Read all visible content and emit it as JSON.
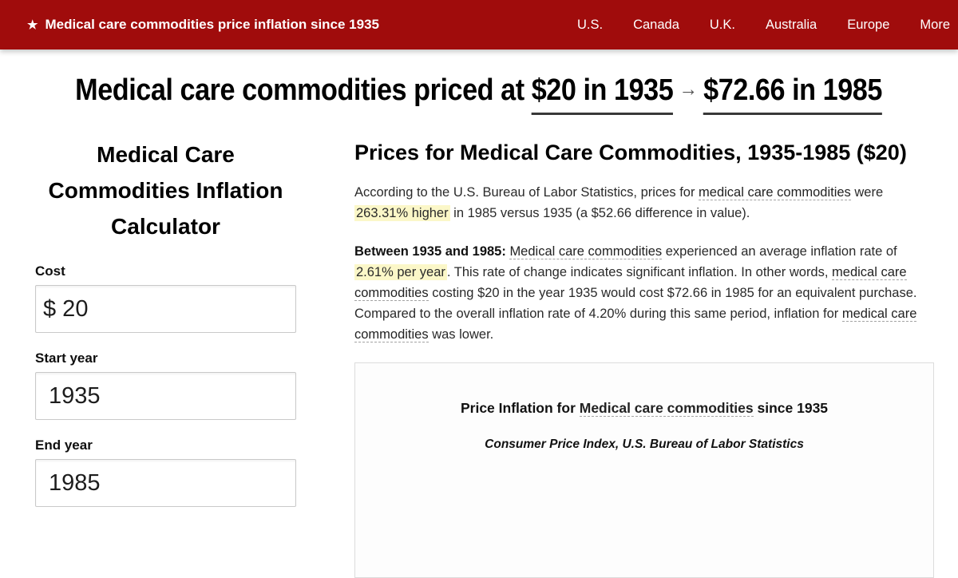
{
  "colors": {
    "accent_red": "#a00c0c",
    "highlight_yellow": "#fbf7c8"
  },
  "header": {
    "star_icon": "★",
    "brand": "Medical care commodities price inflation since 1935",
    "nav_items": [
      "U.S.",
      "Canada",
      "U.K.",
      "Australia",
      "Europe",
      "More"
    ]
  },
  "headline": {
    "prefix": "Medical care commodities priced at ",
    "from": "$20 in 1935",
    "arrow": "→",
    "to": "$72.66 in 1985"
  },
  "calculator": {
    "title": "Medical Care Commodities Inflation Calculator",
    "cost_label": "Cost",
    "cost_value": "$ 20",
    "start_year_label": "Start year",
    "start_year_value": "1935",
    "end_year_label": "End year",
    "end_year_value": "1985"
  },
  "article": {
    "title": "Prices for Medical Care Commodities, 1935-1985 ($20)",
    "p1": {
      "t1": "According to the U.S. Bureau of Labor Statistics, prices for ",
      "link1": "medical care commodities",
      "t2": " were ",
      "highlight": "263.31% higher",
      "t3": " in 1985 versus 1935 (a $52.66 difference in value)."
    },
    "p2": {
      "bold": "Between 1935 and 1985: ",
      "link1": "Medical care commodities",
      "t1": " experienced an average inflation rate of ",
      "highlight": "2.61% per year",
      "t2": ". This rate of change indicates significant inflation. In other words, ",
      "link2": "medical care commodities",
      "t3": " costing $20 in the year 1935 would cost $72.66 in 1985 for an equivalent purchase. Compared to the overall inflation rate of 4.20% during this same period, inflation for ",
      "link3": "medical care commodities",
      "t4": " was lower."
    },
    "chart_card": {
      "title_prefix": "Price Inflation for ",
      "title_link": "Medical care commodities",
      "title_suffix": " since 1935",
      "subtitle": "Consumer Price Index, U.S. Bureau of Labor Statistics"
    }
  }
}
